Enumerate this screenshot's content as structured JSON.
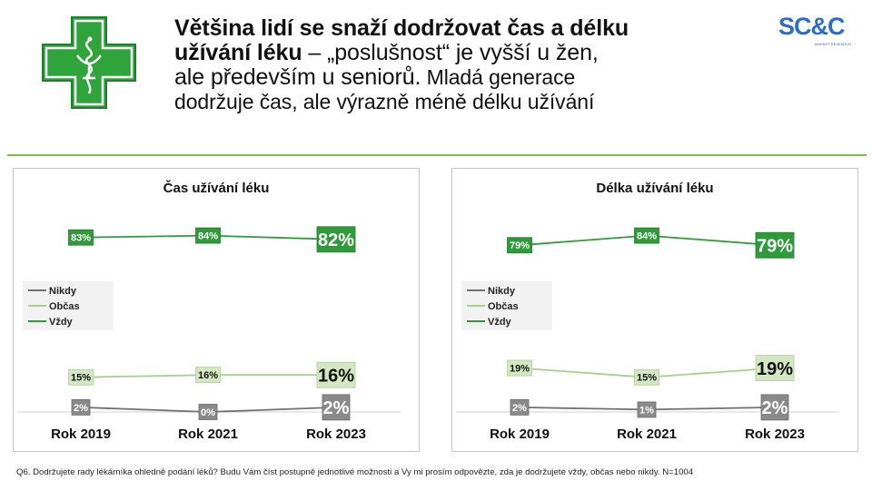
{
  "header": {
    "title_bold_1": "Většina lidí se snaží dodržovat čas a délku",
    "title_bold_2": "užívání léku",
    "title_rest_2": " – „poslušnost“ je vyšší u žen,",
    "title_line_3a": "ale především u seniorů.",
    "title_line_3b": " Mladá generace",
    "title_line_4": "dodržuje čas, ale výrazně méně délku užívání"
  },
  "brand": {
    "name": "SC&C",
    "tagline": "MARKET RESEARCH"
  },
  "icons": {
    "logo": "pharmacy-cross-icon"
  },
  "colors": {
    "vzdy": "#2e9a3a",
    "obcas": "#a8d08d",
    "nikdy": "#707070",
    "divider": "#7bbf4b"
  },
  "footnote": "Q6. Dodržujete rady lékárníka ohledně podání léků? Budu Vám číst postupně jednotlivé možnosti a Vy mi prosím odpovězte, zda je dodržujete vždy, občas nebo nikdy. N=1004",
  "chart_data": [
    {
      "type": "line",
      "title": "Čas užívání léku",
      "categories": [
        "Rok 2019",
        "Rok 2021",
        "Rok 2023"
      ],
      "series": [
        {
          "name": "Nikdy",
          "values": [
            2,
            0,
            2
          ],
          "labels": [
            "2%",
            "0%",
            "2%"
          ],
          "color": "#707070"
        },
        {
          "name": "Občas",
          "values": [
            15,
            16,
            16
          ],
          "labels": [
            "15%",
            "16%",
            "16%"
          ],
          "color": "#a8d08d"
        },
        {
          "name": "Vždy",
          "values": [
            83,
            84,
            82
          ],
          "labels": [
            "83%",
            "84%",
            "82%"
          ],
          "color": "#2e9a3a"
        }
      ],
      "ylim": [
        0,
        100
      ],
      "legend": "left",
      "grid": false
    },
    {
      "type": "line",
      "title": "Délka užívání léku",
      "categories": [
        "Rok 2019",
        "Rok 2021",
        "Rok 2023"
      ],
      "series": [
        {
          "name": "Nikdy",
          "values": [
            2,
            1,
            2
          ],
          "labels": [
            "2%",
            "1%",
            "2%"
          ],
          "color": "#707070"
        },
        {
          "name": "Občas",
          "values": [
            19,
            15,
            19
          ],
          "labels": [
            "19%",
            "15%",
            "19%"
          ],
          "color": "#a8d08d"
        },
        {
          "name": "Vždy",
          "values": [
            79,
            84,
            79
          ],
          "labels": [
            "79%",
            "84%",
            "79%"
          ],
          "color": "#2e9a3a"
        }
      ],
      "ylim": [
        0,
        100
      ],
      "legend": "left",
      "grid": false
    }
  ]
}
